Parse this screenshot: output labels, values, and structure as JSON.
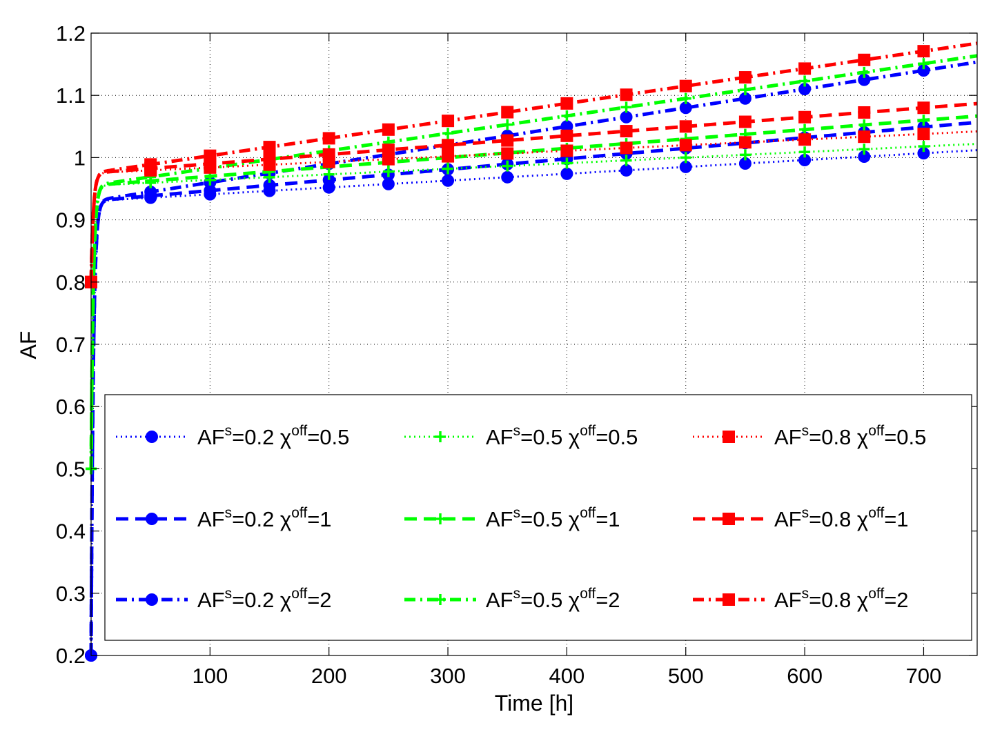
{
  "chart_data": {
    "type": "line",
    "title": "",
    "xlabel": "Time [h]",
    "ylabel": "AF",
    "xlim": [
      0,
      745
    ],
    "ylim": [
      0.2,
      1.2
    ],
    "xticks": [
      100,
      200,
      300,
      400,
      500,
      600,
      700
    ],
    "yticks": [
      0.2,
      0.3,
      0.4,
      0.5,
      0.6,
      0.7,
      0.8,
      0.9,
      1,
      1.1,
      1.2
    ],
    "xtick_labels": [
      "100",
      "200",
      "300",
      "400",
      "500",
      "600",
      "700"
    ],
    "ytick_labels": [
      "0.2",
      "0.3",
      "0.4",
      "0.5",
      "0.6",
      "0.7",
      "0.8",
      "0.9",
      "1",
      "1.1",
      "1.2"
    ],
    "grid": true,
    "legend_position": "lower-right",
    "marker_x": [
      0,
      50,
      100,
      150,
      200,
      250,
      300,
      350,
      400,
      450,
      500,
      550,
      600,
      650,
      700
    ],
    "series": [
      {
        "name": "AF^s=0.2 χ^off=0.5",
        "label_base": "AF",
        "label_sup1": "s",
        "label_mid": "=0.2 χ",
        "label_sup2": "off",
        "label_end": "=0.5",
        "color": "#0000ff",
        "style": "dotted",
        "marker": "circle",
        "af_s": 0.2,
        "plateau": 0.93,
        "slope": 0.00011
      },
      {
        "name": "AF^s=0.2 χ^off=1",
        "label_base": "AF",
        "label_sup1": "s",
        "label_mid": "=0.2 χ",
        "label_sup2": "off",
        "label_end": "=1",
        "color": "#0000ff",
        "style": "dashed",
        "marker": "circle",
        "af_s": 0.2,
        "plateau": 0.93,
        "slope": 0.00017
      },
      {
        "name": "AF^s=0.2 χ^off=2",
        "label_base": "AF",
        "label_sup1": "s",
        "label_mid": "=0.2 χ",
        "label_sup2": "off",
        "label_end": "=2",
        "color": "#0000ff",
        "style": "dashdot",
        "marker": "circle",
        "af_s": 0.2,
        "plateau": 0.93,
        "slope": 0.0003
      },
      {
        "name": "AF^s=0.5 χ^off=0.5",
        "label_base": "AF",
        "label_sup1": "s",
        "label_mid": "=0.5 χ",
        "label_sup2": "off",
        "label_end": "=0.5",
        "color": "#00ff00",
        "style": "dotted",
        "marker": "plus",
        "af_s": 0.5,
        "plateau": 0.955,
        "slope": 9e-05
      },
      {
        "name": "AF^s=0.5 χ^off=1",
        "label_base": "AF",
        "label_sup1": "s",
        "label_mid": "=0.5 χ",
        "label_sup2": "off",
        "label_end": "=1",
        "color": "#00ff00",
        "style": "dashed",
        "marker": "plus",
        "af_s": 0.5,
        "plateau": 0.955,
        "slope": 0.00015
      },
      {
        "name": "AF^s=0.5 χ^off=2",
        "label_base": "AF",
        "label_sup1": "s",
        "label_mid": "=0.5 χ",
        "label_sup2": "off",
        "label_end": "=2",
        "color": "#00ff00",
        "style": "dashdot",
        "marker": "plus",
        "af_s": 0.5,
        "plateau": 0.955,
        "slope": 0.00028
      },
      {
        "name": "AF^s=0.8 χ^off=0.5",
        "label_base": "AF",
        "label_sup1": "s",
        "label_mid": "=0.8 χ",
        "label_sup2": "off",
        "label_end": "=0.5",
        "color": "#ff0000",
        "style": "dotted",
        "marker": "square",
        "af_s": 0.8,
        "plateau": 0.975,
        "slope": 9e-05
      },
      {
        "name": "AF^s=0.8 χ^off=1",
        "label_base": "AF",
        "label_sup1": "s",
        "label_mid": "=0.8 χ",
        "label_sup2": "off",
        "label_end": "=1",
        "color": "#ff0000",
        "style": "dashed",
        "marker": "square",
        "af_s": 0.8,
        "plateau": 0.975,
        "slope": 0.00015
      },
      {
        "name": "AF^s=0.8 χ^off=2",
        "label_base": "AF",
        "label_sup1": "s",
        "label_mid": "=0.8 χ",
        "label_sup2": "off",
        "label_end": "=2",
        "color": "#ff0000",
        "style": "dashdot",
        "marker": "square",
        "af_s": 0.8,
        "plateau": 0.975,
        "slope": 0.00028
      }
    ]
  }
}
